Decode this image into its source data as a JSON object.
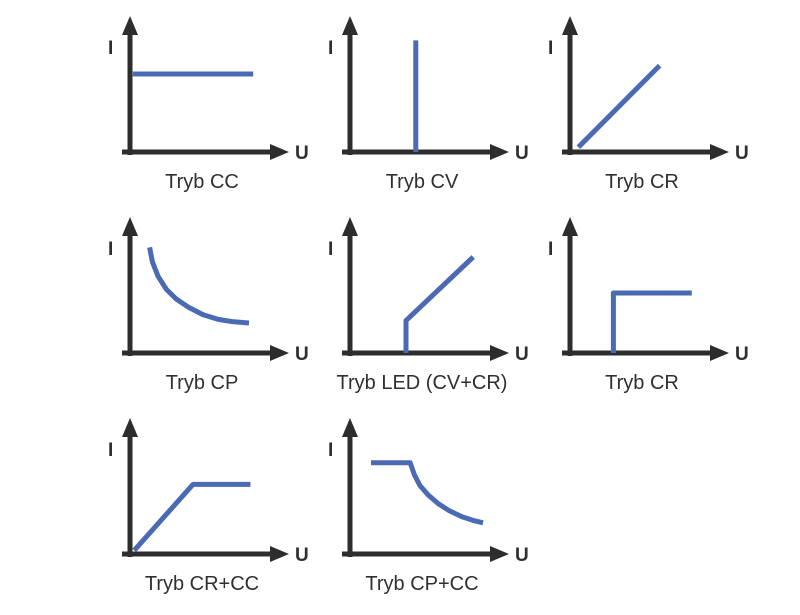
{
  "styles": {
    "curve_color": "#4a6ab3",
    "axis_color": "#2d2d2d",
    "label_color": "#2f2f2f",
    "background_color": "#ffffff"
  },
  "figure": {
    "columns": 3
  },
  "chart_data": [
    {
      "type": "line",
      "title": "Tryb CC",
      "xlabel": "U",
      "ylabel": "I",
      "x_range": [
        0,
        1
      ],
      "y_range": [
        0,
        1
      ],
      "grid": false,
      "series": [
        {
          "name": "constant-current-curve",
          "points": [
            [
              0.02,
              0.65
            ],
            [
              0.88,
              0.65
            ]
          ]
        }
      ]
    },
    {
      "type": "line",
      "title": "Tryb CV",
      "xlabel": "U",
      "ylabel": "I",
      "x_range": [
        0,
        1
      ],
      "y_range": [
        0,
        1
      ],
      "grid": false,
      "series": [
        {
          "name": "constant-voltage-curve",
          "points": [
            [
              0.47,
              0.0
            ],
            [
              0.47,
              0.93
            ]
          ]
        }
      ]
    },
    {
      "type": "line",
      "title": "Tryb CR",
      "xlabel": "U",
      "ylabel": "I",
      "x_range": [
        0,
        1
      ],
      "y_range": [
        0,
        1
      ],
      "grid": false,
      "series": [
        {
          "name": "constant-resistance-curve",
          "points": [
            [
              0.06,
              0.04
            ],
            [
              0.64,
              0.72
            ]
          ]
        }
      ]
    },
    {
      "type": "line",
      "title": "Tryb CP",
      "xlabel": "U",
      "ylabel": "I",
      "x_range": [
        0,
        1
      ],
      "y_range": [
        0,
        1
      ],
      "grid": false,
      "series": [
        {
          "name": "constant-power-curve",
          "points": [
            [
              0.14,
              0.88
            ],
            [
              0.16,
              0.76
            ],
            [
              0.2,
              0.64
            ],
            [
              0.26,
              0.53
            ],
            [
              0.33,
              0.45
            ],
            [
              0.42,
              0.38
            ],
            [
              0.52,
              0.32
            ],
            [
              0.63,
              0.28
            ],
            [
              0.74,
              0.26
            ],
            [
              0.85,
              0.25
            ]
          ]
        }
      ]
    },
    {
      "type": "line",
      "title": "Tryb LED (CV+CR)",
      "xlabel": "U",
      "ylabel": "I",
      "x_range": [
        0,
        1
      ],
      "y_range": [
        0,
        1
      ],
      "grid": false,
      "series": [
        {
          "name": "led-cv-cr-curve",
          "points": [
            [
              0.4,
              0.0
            ],
            [
              0.4,
              0.27
            ],
            [
              0.88,
              0.8
            ]
          ]
        }
      ]
    },
    {
      "type": "line",
      "title": "Tryb CR",
      "xlabel": "U",
      "ylabel": "I",
      "x_range": [
        0,
        1
      ],
      "y_range": [
        0,
        1
      ],
      "grid": false,
      "series": [
        {
          "name": "constant-resistance-step-curve",
          "points": [
            [
              0.31,
              0.0
            ],
            [
              0.31,
              0.5
            ],
            [
              0.87,
              0.5
            ]
          ]
        }
      ]
    },
    {
      "type": "line",
      "title": "Tryb CR+CC",
      "xlabel": "U",
      "ylabel": "I",
      "x_range": [
        0,
        1
      ],
      "y_range": [
        0,
        1
      ],
      "grid": false,
      "series": [
        {
          "name": "cr-cc-curve",
          "points": [
            [
              0.03,
              0.03
            ],
            [
              0.45,
              0.58
            ],
            [
              0.86,
              0.58
            ]
          ]
        }
      ]
    },
    {
      "type": "line",
      "title": "Tryb CP+CC",
      "xlabel": "U",
      "ylabel": "I",
      "x_range": [
        0,
        1
      ],
      "y_range": [
        0,
        1
      ],
      "grid": false,
      "series": [
        {
          "name": "cp-cc-curve",
          "points": [
            [
              0.15,
              0.76
            ],
            [
              0.43,
              0.76
            ],
            [
              0.46,
              0.66
            ],
            [
              0.5,
              0.57
            ],
            [
              0.56,
              0.49
            ],
            [
              0.63,
              0.42
            ],
            [
              0.71,
              0.36
            ],
            [
              0.8,
              0.31
            ],
            [
              0.88,
              0.28
            ],
            [
              0.95,
              0.26
            ]
          ]
        }
      ]
    }
  ]
}
